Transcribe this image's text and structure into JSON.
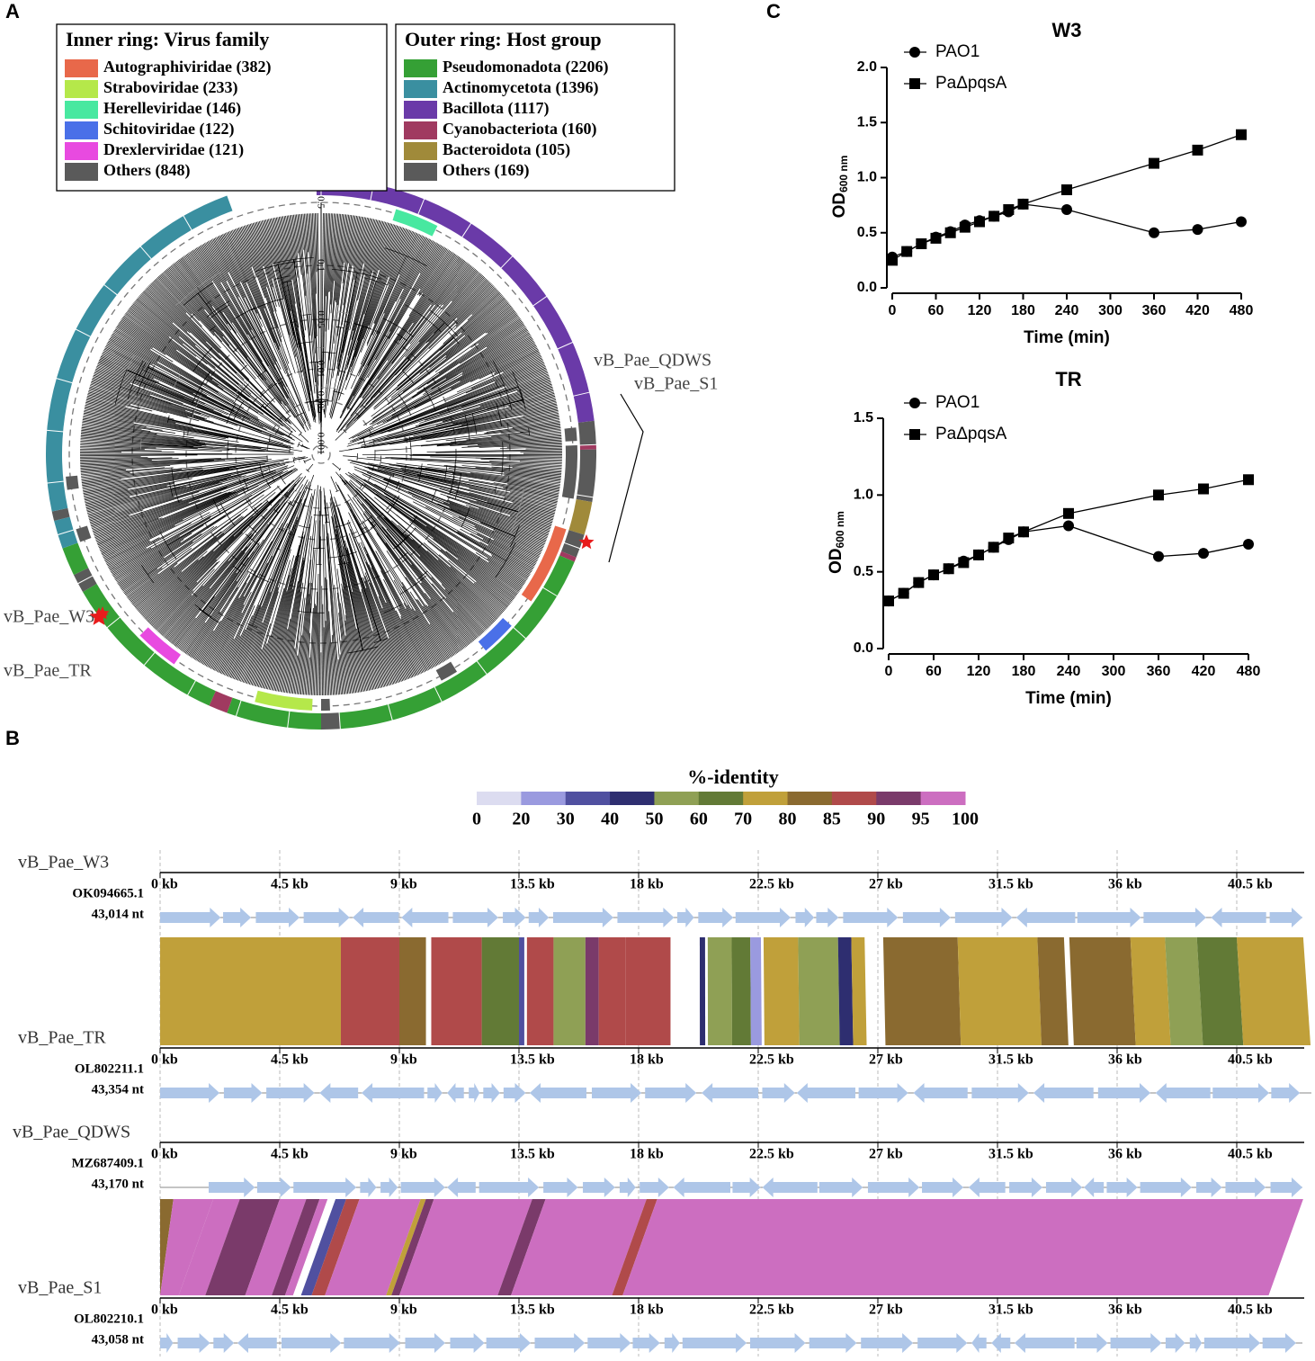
{
  "panel_a": {
    "label": "A",
    "inner_legend": {
      "title": "Inner ring: Virus family",
      "items": [
        {
          "label": "Autographiviridae (382)",
          "color": "#e8684a"
        },
        {
          "label": "Straboviridae (233)",
          "color": "#b5e84a"
        },
        {
          "label": "Herelleviridae (146)",
          "color": "#48e8a0"
        },
        {
          "label": "Schitoviridae (122)",
          "color": "#4a70e8"
        },
        {
          "label": "Drexlerviridae (121)",
          "color": "#e84ae0"
        },
        {
          "label": "Others (848)",
          "color": "#5a5a5a"
        }
      ]
    },
    "outer_legend": {
      "title": "Outer ring: Host group",
      "items": [
        {
          "label": "Pseudomonadota (2206)",
          "color": "#35a035"
        },
        {
          "label": "Actinomycetota (1396)",
          "color": "#3a8fa0"
        },
        {
          "label": "Bacillota (1117)",
          "color": "#6a3aa8"
        },
        {
          "label": "Cyanobacteriota (160)",
          "color": "#a03a60"
        },
        {
          "label": "Bacteroidota (105)",
          "color": "#a08a3a"
        },
        {
          "label": "Others (169)",
          "color": "#5a5a5a"
        }
      ]
    },
    "scale_labels": [
      "0.5",
      "0.1",
      "0.05",
      "0.01",
      "0.005",
      "0.001"
    ],
    "phage_labels": [
      "vB_Pae_QDWS",
      "vB_Pae_S1",
      "vB_Pae_W3",
      "vB_Pae_TR"
    ]
  },
  "panel_b": {
    "label": "B",
    "identity_scale": {
      "title": "%-identity",
      "ticks": [
        0,
        20,
        30,
        40,
        50,
        60,
        70,
        80,
        85,
        90,
        95,
        100
      ],
      "colors": [
        "#dcdcf0",
        "#9a9adf",
        "#5050a0",
        "#2e2e70",
        "#8fa055",
        "#627a36",
        "#c0a03a",
        "#8a6a30",
        "#b04a4a",
        "#7a3a6a",
        "#cc6ec0"
      ]
    },
    "kb_ticks": [
      {
        "value": 0,
        "label": "0 kb"
      },
      {
        "value": 4.5,
        "label": "4.5 kb"
      },
      {
        "value": 9,
        "label": "9 kb"
      },
      {
        "value": 13.5,
        "label": "13.5 kb"
      },
      {
        "value": 18,
        "label": "18 kb"
      },
      {
        "value": 22.5,
        "label": "22.5 kb"
      },
      {
        "value": 27,
        "label": "27 kb"
      },
      {
        "value": 31.5,
        "label": "31.5 kb"
      },
      {
        "value": 36,
        "label": "36 kb"
      },
      {
        "value": 40.5,
        "label": "40.5 kb"
      }
    ],
    "genomes": [
      {
        "name": "vB_Pae_W3",
        "accession": "OK094665.1",
        "length": "43,014 nt"
      },
      {
        "name": "vB_Pae_TR",
        "accession": "OL802211.1",
        "length": "43,354 nt"
      },
      {
        "name": "vB_Pae_QDWS",
        "accession": "MZ687409.1",
        "length": "43,170 nt"
      },
      {
        "name": "vB_Pae_S1",
        "accession": "OL802210.1",
        "length": "43,058 nt"
      }
    ]
  },
  "panel_c": {
    "label": "C"
  },
  "chart_data": [
    {
      "type": "line",
      "title": "W3",
      "xlabel": "Time (min)",
      "ylabel": "OD",
      "ylabel_sub": "600 nm",
      "x": [
        0,
        20,
        40,
        60,
        80,
        100,
        120,
        140,
        160,
        180,
        240,
        360,
        420,
        480
      ],
      "xlim": [
        0,
        480
      ],
      "xticks": [
        0,
        60,
        120,
        180,
        240,
        300,
        360,
        420,
        480
      ],
      "ylim": [
        0,
        2
      ],
      "yticks": [
        {
          "value": 0,
          "label": "0.0"
        },
        {
          "value": 0.5,
          "label": "0.5"
        },
        {
          "value": 1,
          "label": "1.0"
        },
        {
          "value": 1.5,
          "label": "1.5"
        },
        {
          "value": 2,
          "label": "2.0"
        }
      ],
      "series": [
        {
          "name": "PAO1",
          "color": "#000000",
          "marker": "circle",
          "values": [
            0.28,
            0.33,
            0.4,
            0.46,
            0.51,
            0.57,
            0.61,
            0.65,
            0.69,
            0.76,
            0.71,
            0.5,
            0.53,
            0.6
          ]
        },
        {
          "name": "PaΔpqsA",
          "color": "#000000",
          "marker": "square",
          "values": [
            0.25,
            0.33,
            0.4,
            0.45,
            0.5,
            0.55,
            0.6,
            0.65,
            0.71,
            0.76,
            0.89,
            1.13,
            1.25,
            1.39
          ]
        }
      ]
    },
    {
      "type": "line",
      "title": "TR",
      "xlabel": "Time (min)",
      "ylabel": "OD",
      "ylabel_sub": "600 nm",
      "x": [
        0,
        20,
        40,
        60,
        80,
        100,
        120,
        140,
        160,
        180,
        240,
        360,
        420,
        480
      ],
      "xlim": [
        0,
        480
      ],
      "xticks": [
        0,
        60,
        120,
        180,
        240,
        300,
        360,
        420,
        480
      ],
      "ylim": [
        0,
        1.5
      ],
      "yticks": [
        {
          "value": 0,
          "label": "0.0"
        },
        {
          "value": 0.5,
          "label": "0.5"
        },
        {
          "value": 1,
          "label": "1.0"
        },
        {
          "value": 1.5,
          "label": "1.5"
        }
      ],
      "series": [
        {
          "name": "PAO1",
          "color": "#000000",
          "marker": "circle",
          "values": [
            0.31,
            0.36,
            0.43,
            0.48,
            0.52,
            0.57,
            0.61,
            0.66,
            0.71,
            0.76,
            0.8,
            0.6,
            0.62,
            0.68
          ]
        },
        {
          "name": "PaΔpqsA",
          "color": "#000000",
          "marker": "square",
          "values": [
            0.31,
            0.36,
            0.43,
            0.48,
            0.52,
            0.56,
            0.61,
            0.66,
            0.72,
            0.76,
            0.88,
            1.0,
            1.04,
            1.1
          ]
        }
      ]
    }
  ]
}
